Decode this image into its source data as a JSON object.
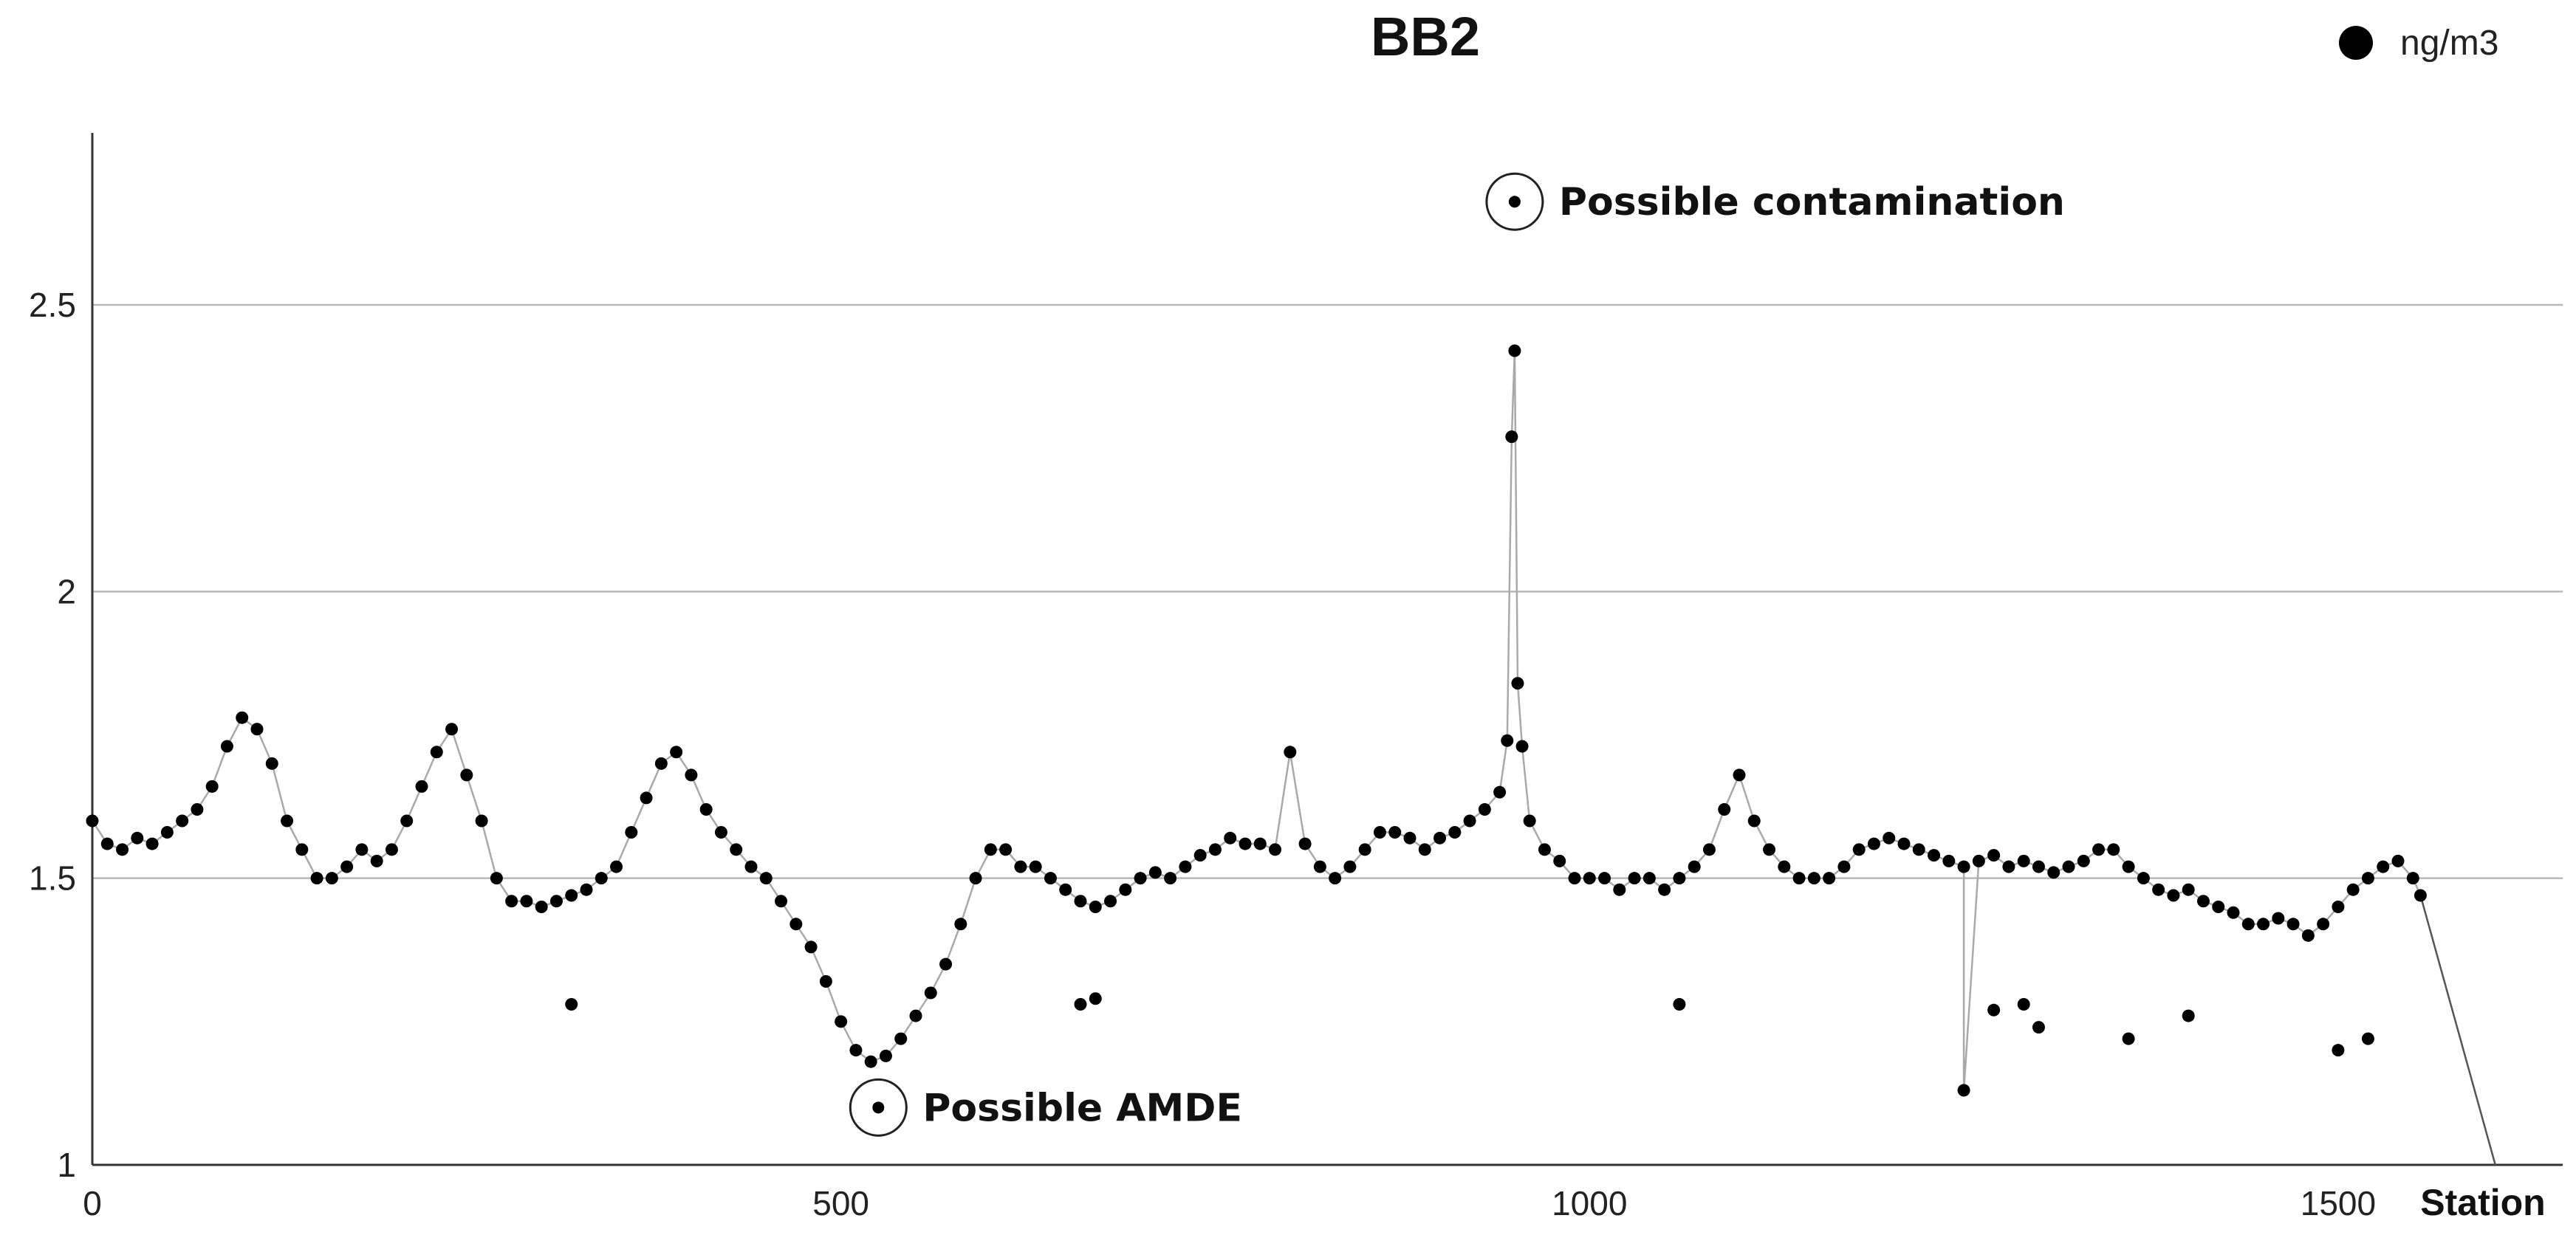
{
  "chart_data": {
    "type": "scatter",
    "title": "BB2",
    "xlabel": "Station",
    "ylabel": "",
    "xlim": [
      0,
      1650
    ],
    "ylim": [
      1,
      2.8
    ],
    "x_ticks": [
      0,
      500,
      1000,
      1500
    ],
    "x_tick_labels": [
      "0",
      "500",
      "1000",
      "1500"
    ],
    "y_ticks": [
      1,
      1.5,
      2,
      2.5
    ],
    "y_tick_labels": [
      "1",
      "1.5",
      "2",
      "2.5"
    ],
    "grid": true,
    "legend_position": "top-right",
    "series": [
      {
        "name": "ng/m3",
        "color": "#000000",
        "line_color": "#a9a9a9",
        "points": [
          [
            0,
            1.6
          ],
          [
            10,
            1.56
          ],
          [
            20,
            1.55
          ],
          [
            30,
            1.57
          ],
          [
            40,
            1.56
          ],
          [
            50,
            1.58
          ],
          [
            60,
            1.6
          ],
          [
            70,
            1.62
          ],
          [
            80,
            1.66
          ],
          [
            90,
            1.73
          ],
          [
            100,
            1.78
          ],
          [
            110,
            1.76
          ],
          [
            120,
            1.7
          ],
          [
            130,
            1.6
          ],
          [
            140,
            1.55
          ],
          [
            150,
            1.5
          ],
          [
            160,
            1.5
          ],
          [
            170,
            1.52
          ],
          [
            180,
            1.55
          ],
          [
            190,
            1.53
          ],
          [
            200,
            1.55
          ],
          [
            210,
            1.6
          ],
          [
            220,
            1.66
          ],
          [
            230,
            1.72
          ],
          [
            240,
            1.76
          ],
          [
            250,
            1.68
          ],
          [
            260,
            1.6
          ],
          [
            270,
            1.5
          ],
          [
            280,
            1.46
          ],
          [
            290,
            1.46
          ],
          [
            300,
            1.45
          ],
          [
            310,
            1.46
          ],
          [
            320,
            1.47
          ],
          [
            330,
            1.48
          ],
          [
            340,
            1.5
          ],
          [
            350,
            1.52
          ],
          [
            360,
            1.58
          ],
          [
            370,
            1.64
          ],
          [
            380,
            1.7
          ],
          [
            390,
            1.72
          ],
          [
            400,
            1.68
          ],
          [
            410,
            1.62
          ],
          [
            420,
            1.58
          ],
          [
            430,
            1.55
          ],
          [
            440,
            1.52
          ],
          [
            450,
            1.5
          ],
          [
            460,
            1.46
          ],
          [
            470,
            1.42
          ],
          [
            480,
            1.38
          ],
          [
            490,
            1.32
          ],
          [
            500,
            1.25
          ],
          [
            510,
            1.2
          ],
          [
            520,
            1.18
          ],
          [
            530,
            1.19
          ],
          [
            540,
            1.22
          ],
          [
            550,
            1.26
          ],
          [
            560,
            1.3
          ],
          [
            570,
            1.35
          ],
          [
            580,
            1.42
          ],
          [
            590,
            1.5
          ],
          [
            600,
            1.55
          ],
          [
            610,
            1.55
          ],
          [
            620,
            1.52
          ],
          [
            630,
            1.52
          ],
          [
            640,
            1.5
          ],
          [
            650,
            1.48
          ],
          [
            660,
            1.46
          ],
          [
            670,
            1.45
          ],
          [
            680,
            1.46
          ],
          [
            690,
            1.48
          ],
          [
            700,
            1.5
          ],
          [
            710,
            1.51
          ],
          [
            720,
            1.5
          ],
          [
            730,
            1.52
          ],
          [
            740,
            1.54
          ],
          [
            750,
            1.55
          ],
          [
            760,
            1.57
          ],
          [
            770,
            1.56
          ],
          [
            780,
            1.56
          ],
          [
            790,
            1.55
          ],
          [
            800,
            1.72
          ],
          [
            810,
            1.56
          ],
          [
            820,
            1.52
          ],
          [
            830,
            1.5
          ],
          [
            840,
            1.52
          ],
          [
            850,
            1.55
          ],
          [
            860,
            1.58
          ],
          [
            870,
            1.58
          ],
          [
            880,
            1.57
          ],
          [
            890,
            1.55
          ],
          [
            900,
            1.57
          ],
          [
            910,
            1.58
          ],
          [
            920,
            1.6
          ],
          [
            930,
            1.62
          ],
          [
            940,
            1.65
          ],
          [
            945,
            1.74
          ],
          [
            948,
            2.27
          ],
          [
            950,
            2.42
          ],
          [
            952,
            1.84
          ],
          [
            955,
            1.73
          ],
          [
            960,
            1.6
          ],
          [
            970,
            1.55
          ],
          [
            980,
            1.53
          ],
          [
            990,
            1.5
          ],
          [
            1000,
            1.5
          ],
          [
            1010,
            1.5
          ],
          [
            1020,
            1.48
          ],
          [
            1030,
            1.5
          ],
          [
            1040,
            1.5
          ],
          [
            1050,
            1.48
          ],
          [
            1060,
            1.5
          ],
          [
            1070,
            1.52
          ],
          [
            1080,
            1.55
          ],
          [
            1090,
            1.62
          ],
          [
            1100,
            1.68
          ],
          [
            1110,
            1.6
          ],
          [
            1120,
            1.55
          ],
          [
            1130,
            1.52
          ],
          [
            1140,
            1.5
          ],
          [
            1150,
            1.5
          ],
          [
            1160,
            1.5
          ],
          [
            1170,
            1.52
          ],
          [
            1180,
            1.55
          ],
          [
            1190,
            1.56
          ],
          [
            1200,
            1.57
          ],
          [
            1210,
            1.56
          ],
          [
            1220,
            1.55
          ],
          [
            1230,
            1.54
          ],
          [
            1240,
            1.53
          ],
          [
            1250,
            1.52
          ],
          [
            1260,
            1.53
          ],
          [
            1270,
            1.54
          ],
          [
            1280,
            1.52
          ],
          [
            1290,
            1.53
          ],
          [
            1300,
            1.52
          ],
          [
            1310,
            1.51
          ],
          [
            1320,
            1.52
          ],
          [
            1330,
            1.53
          ],
          [
            1340,
            1.55
          ],
          [
            1350,
            1.55
          ],
          [
            1360,
            1.52
          ],
          [
            1370,
            1.5
          ],
          [
            1380,
            1.48
          ],
          [
            1390,
            1.47
          ],
          [
            1400,
            1.48
          ],
          [
            1410,
            1.46
          ],
          [
            1420,
            1.45
          ],
          [
            1430,
            1.44
          ],
          [
            1440,
            1.42
          ],
          [
            1450,
            1.42
          ],
          [
            1460,
            1.43
          ],
          [
            1470,
            1.42
          ],
          [
            1480,
            1.4
          ],
          [
            1490,
            1.42
          ],
          [
            1500,
            1.45
          ],
          [
            1510,
            1.48
          ],
          [
            1520,
            1.5
          ],
          [
            1530,
            1.52
          ],
          [
            1540,
            1.53
          ],
          [
            1550,
            1.5
          ],
          [
            1555,
            1.47
          ],
          [
            1250,
            1.13
          ],
          [
            1270,
            1.27
          ],
          [
            1290,
            1.28
          ],
          [
            1300,
            1.24
          ],
          [
            1360,
            1.22
          ],
          [
            1400,
            1.26
          ],
          [
            1500,
            1.2
          ],
          [
            1520,
            1.22
          ],
          [
            1060,
            1.28
          ],
          [
            320,
            1.28
          ],
          [
            660,
            1.28
          ],
          [
            670,
            1.29
          ]
        ],
        "trailing_line": [
          [
            1555,
            1.47
          ],
          [
            1605,
            1.0
          ]
        ]
      }
    ],
    "annotations": [
      {
        "text": "Possible contamination",
        "x": 950,
        "y": 2.68
      },
      {
        "text": "Possible AMDE",
        "x": 525,
        "y": 1.1
      }
    ]
  }
}
